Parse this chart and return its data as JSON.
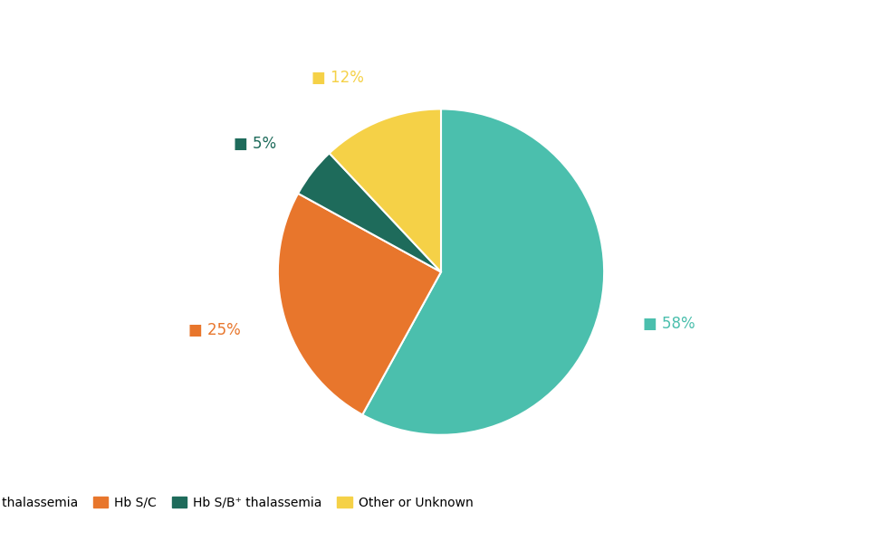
{
  "labels": [
    "Hb S/S or S/B° thalassemia",
    "Hb S/C",
    "Hb S/B⁺ thalassemia",
    "Other or Unknown"
  ],
  "values": [
    58,
    25,
    5,
    12
  ],
  "colors": [
    "#4BBFAD",
    "#E8762C",
    "#1E6B5B",
    "#F5D147"
  ],
  "pct_labels": [
    "58%",
    "25%",
    "5%",
    "12%"
  ],
  "legend_labels": [
    "Hb S/S or S/B° thalassemia",
    "Hb S/C",
    "Hb S/B⁺ thalassemia",
    "Other or Unknown"
  ],
  "background_color": "#ffffff",
  "label_fontsize": 12,
  "legend_fontsize": 10,
  "startangle": 90
}
